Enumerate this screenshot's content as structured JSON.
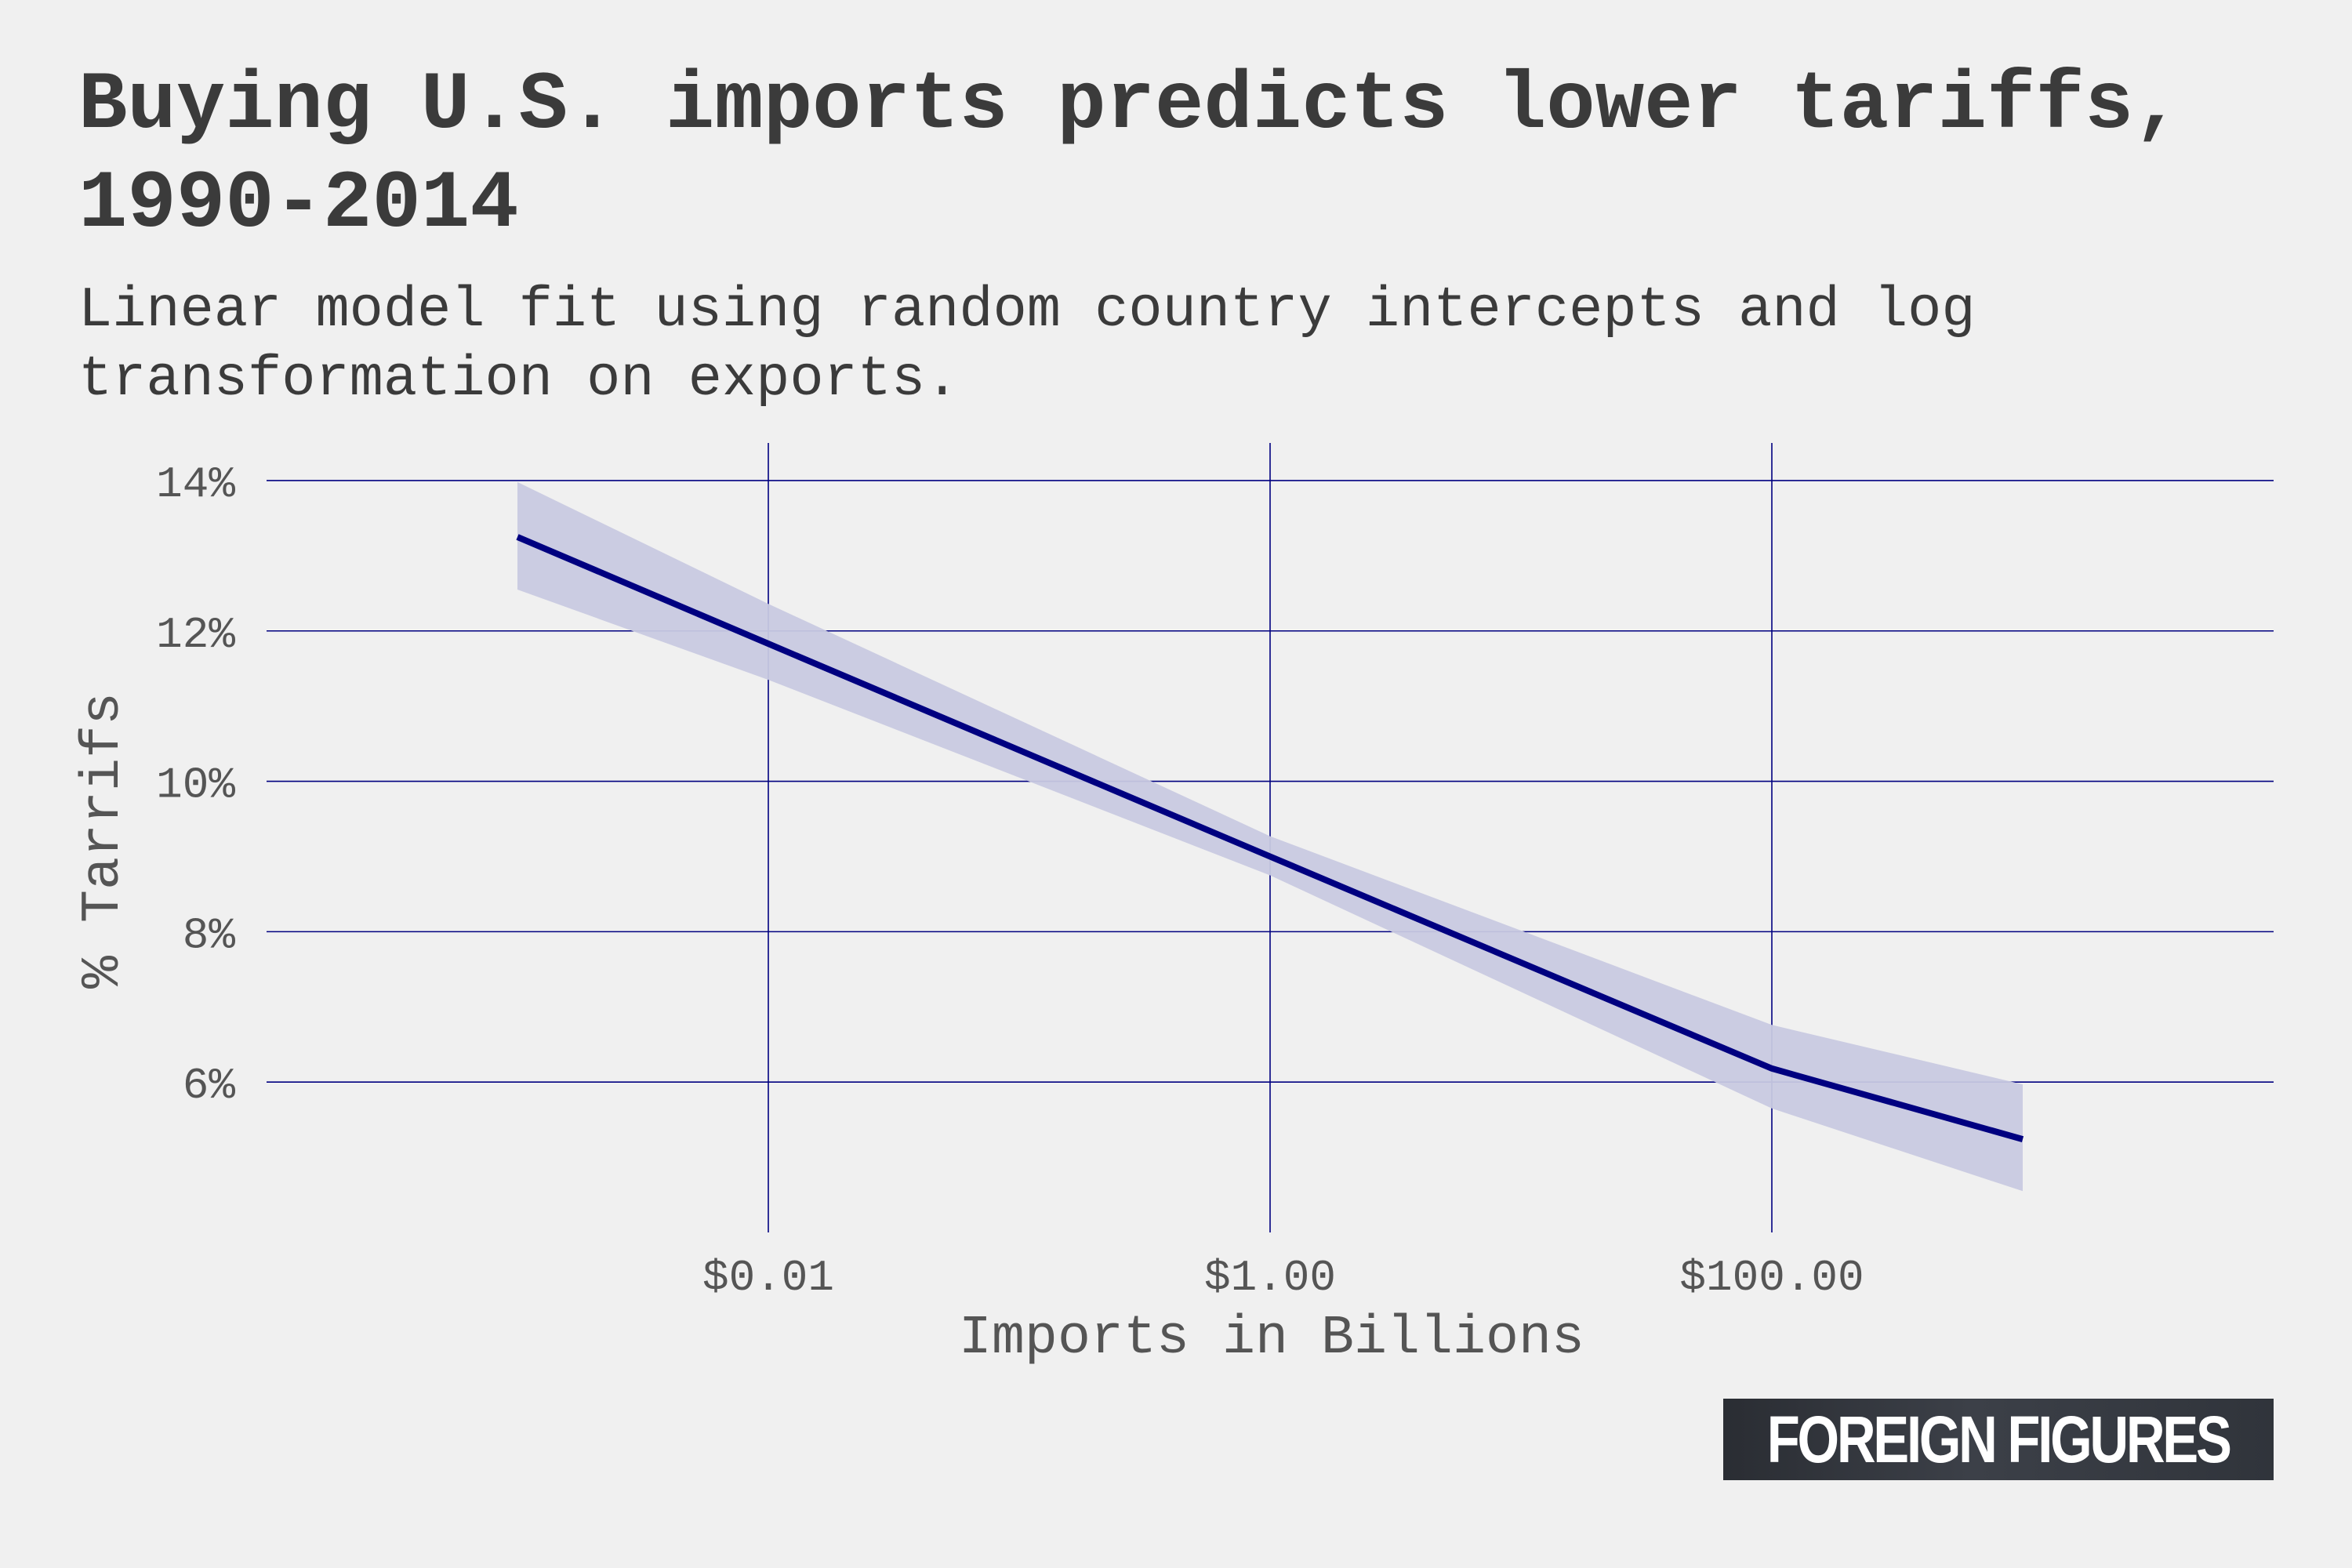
{
  "chart_data": {
    "type": "line",
    "title": "Buying U.S. imports predicts lower tariffs, 1990-2014",
    "subtitle": "Linear model fit using random country intercepts and log transformation on exports.",
    "xlabel": "Imports in Billions",
    "ylabel": "% Tarrifs",
    "x_scale": "log10",
    "xlim": [
      0.0001,
      10000
    ],
    "ylim": [
      4.0,
      14.5
    ],
    "x_ticks": [
      {
        "value": 0.01,
        "label": "$0.01"
      },
      {
        "value": 1.0,
        "label": "$1.00"
      },
      {
        "value": 100.0,
        "label": "$100.00"
      }
    ],
    "y_ticks": [
      {
        "value": 6,
        "label": "6%"
      },
      {
        "value": 8,
        "label": "8%"
      },
      {
        "value": 10,
        "label": "10%"
      },
      {
        "value": 12,
        "label": "12%"
      },
      {
        "value": 14,
        "label": "14%"
      }
    ],
    "grid": true,
    "series": [
      {
        "x": [
          0.001,
          0.01,
          1.0,
          100.0,
          1000.0
        ],
        "y": [
          13.25,
          11.83,
          9.0,
          6.18,
          5.24
        ],
        "ci_lower": [
          12.55,
          11.35,
          8.75,
          5.65,
          4.55
        ],
        "ci_upper": [
          13.98,
          12.36,
          9.27,
          6.76,
          5.97
        ],
        "color": "#000080",
        "band_color": "#c8c9e0"
      }
    ]
  },
  "logo": {
    "text": "FOREIGN FIGURES"
  }
}
